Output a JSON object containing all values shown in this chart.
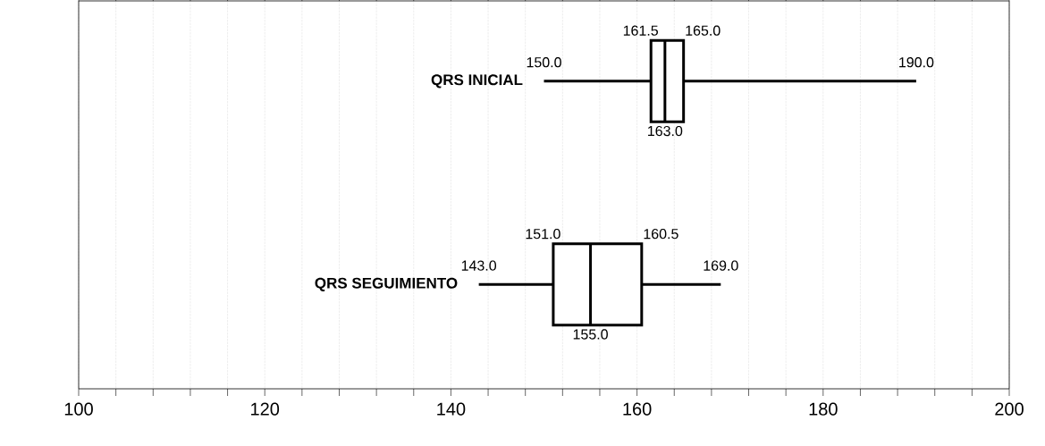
{
  "chart_data": {
    "type": "box",
    "orientation": "horizontal",
    "categories": [
      "QRS INICIAL",
      "QRS SEGUIMIENTO"
    ],
    "boxes": [
      {
        "low": 150.0,
        "q1": 161.5,
        "median": 163.0,
        "q3": 165.0,
        "high": 190.0
      },
      {
        "low": 143.0,
        "q1": 151.0,
        "median": 155.0,
        "q3": 160.5,
        "high": 169.0
      }
    ],
    "color": "#000000",
    "xlim": [
      100,
      200
    ],
    "xticks": [
      100,
      {
        "value": 104,
        "label": null
      },
      {
        "value": 108,
        "label": null
      },
      {
        "value": 112,
        "label": null
      },
      {
        "value": 116,
        "label": null
      },
      120,
      {
        "value": 124,
        "label": null
      },
      {
        "value": 128,
        "label": null
      },
      {
        "value": 132,
        "label": null
      },
      {
        "value": 136,
        "label": null
      },
      140,
      {
        "value": 144,
        "label": null
      },
      {
        "value": 148,
        "label": null
      },
      {
        "value": 152,
        "label": null
      },
      {
        "value": 156,
        "label": null
      },
      160,
      {
        "value": 164,
        "label": null
      },
      {
        "value": 168,
        "label": null
      },
      {
        "value": 172,
        "label": null
      },
      {
        "value": 176,
        "label": null
      },
      180,
      {
        "value": 184,
        "label": null
      },
      {
        "value": 188,
        "label": null
      },
      {
        "value": 192,
        "label": null
      },
      {
        "value": 196,
        "label": null
      },
      200
    ],
    "annotations": [
      "150.0",
      "161.5",
      "165.0",
      "190.0",
      "163.0",
      "143.0",
      "151.0",
      "160.5",
      "169.0",
      "155.0"
    ],
    "grid": "x",
    "tick_labels": "x"
  }
}
